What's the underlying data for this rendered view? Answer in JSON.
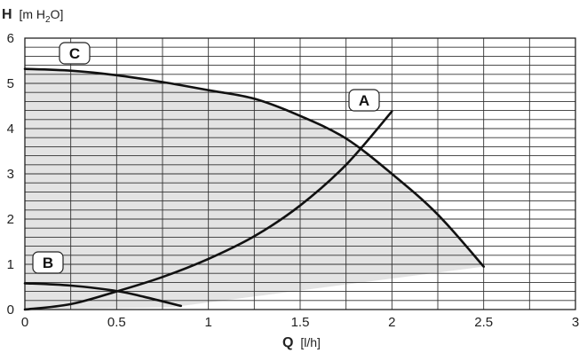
{
  "chart_data": {
    "type": "line",
    "grid": true,
    "xlim": [
      0,
      3
    ],
    "ylim": [
      0,
      6
    ],
    "x_ticks": [
      "0",
      "0.5",
      "1",
      "1.5",
      "2",
      "2.5",
      "3"
    ],
    "y_ticks": [
      "0",
      "1",
      "2",
      "3",
      "4",
      "5",
      "6"
    ],
    "ylabel_bold": "H",
    "ylabel_unit_pre": "[m H",
    "ylabel_sub": "2",
    "ylabel_unit_post": "O]",
    "xlabel_bold": "Q",
    "xlabel_unit": "[l/h]",
    "shaded_region_color": "#e3e3e3",
    "series": [
      {
        "name": "C",
        "color": "#111111",
        "points": [
          [
            0,
            5.32
          ],
          [
            0.25,
            5.28
          ],
          [
            0.5,
            5.18
          ],
          [
            0.75,
            5.03
          ],
          [
            1.0,
            4.85
          ],
          [
            1.25,
            4.66
          ],
          [
            1.5,
            4.28
          ],
          [
            1.75,
            3.78
          ],
          [
            2.0,
            3.0
          ],
          [
            2.25,
            2.1
          ],
          [
            2.5,
            0.95
          ]
        ]
      },
      {
        "name": "A",
        "color": "#111111",
        "points": [
          [
            0,
            0
          ],
          [
            0.25,
            0.12
          ],
          [
            0.5,
            0.4
          ],
          [
            0.75,
            0.72
          ],
          [
            1.0,
            1.12
          ],
          [
            1.25,
            1.62
          ],
          [
            1.5,
            2.3
          ],
          [
            1.75,
            3.2
          ],
          [
            2.0,
            4.38
          ]
        ]
      },
      {
        "name": "B",
        "color": "#111111",
        "points": [
          [
            0,
            0.58
          ],
          [
            0.25,
            0.53
          ],
          [
            0.5,
            0.41
          ],
          [
            0.65,
            0.28
          ],
          [
            0.85,
            0.08
          ]
        ]
      }
    ],
    "shaded_lower_edge": [
      [
        0,
        0
      ],
      [
        0.8,
        0.05
      ],
      [
        2.5,
        0.95
      ]
    ]
  }
}
